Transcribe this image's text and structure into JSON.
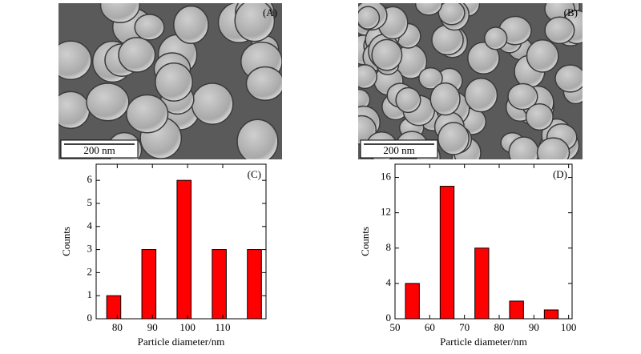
{
  "images": [
    {
      "label": "(A)",
      "scale_bar": "200 nm"
    },
    {
      "label": "(B)",
      "scale_bar": "200 nm"
    }
  ],
  "chart_data": [
    {
      "type": "bar",
      "panel": "(C)",
      "x_label": "Particle diameter/nm",
      "y_label": "Counts",
      "x": [
        79,
        89,
        99,
        109,
        119
      ],
      "values": [
        1,
        3,
        6,
        3,
        3
      ],
      "color": "#ff0000",
      "xlim": [
        74,
        122.3
      ],
      "xticks": [
        80,
        90,
        100,
        110
      ],
      "ylim": [
        0,
        6.7
      ],
      "yticks": [
        0,
        1,
        2,
        3,
        4,
        5,
        6
      ]
    },
    {
      "type": "bar",
      "panel": "(D)",
      "x_label": "Particle diameter/nm",
      "y_label": "Counts",
      "x": [
        55,
        65,
        75,
        85,
        95
      ],
      "values": [
        4,
        15,
        8,
        2,
        1
      ],
      "color": "#ff0000",
      "xlim": [
        50,
        101
      ],
      "xticks": [
        50,
        60,
        70,
        80,
        90,
        100
      ],
      "ylim": [
        0,
        17.5
      ],
      "yticks": [
        0,
        4,
        8,
        12,
        16
      ]
    }
  ]
}
